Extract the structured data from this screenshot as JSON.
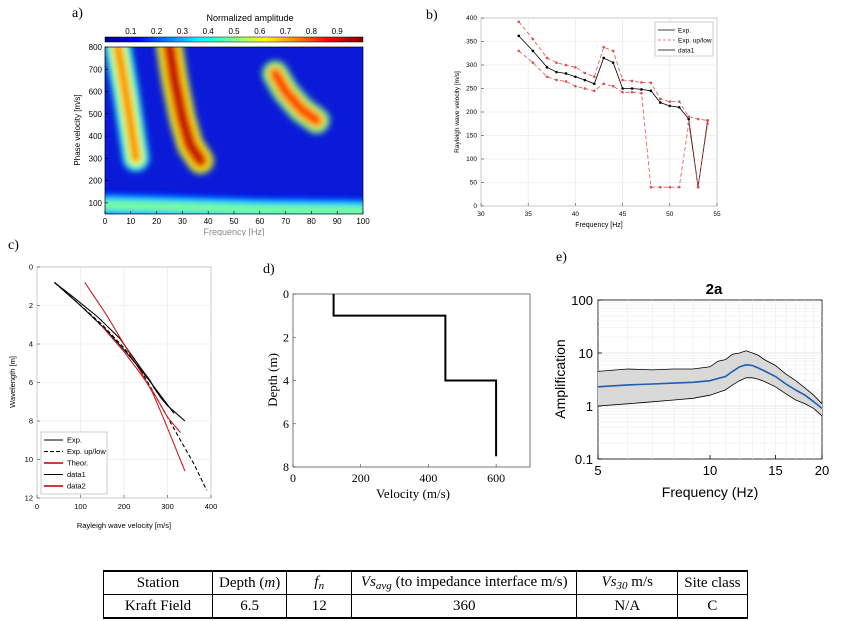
{
  "panel_labels": [
    "a)",
    "b)",
    "c)",
    "d)",
    "e)"
  ],
  "chart_data": [
    {
      "id": "a",
      "type": "heatmap",
      "colorbar_title": "Normalized amplitude",
      "colorbar_ticks": [
        "0.1",
        "0.2",
        "0.3",
        "0.4",
        "0.5",
        "0.6",
        "0.7",
        "0.8",
        "0.9"
      ],
      "colormap": "jet",
      "ylabel": "Phase velocity [m/s]",
      "xlabel": "Frequency [Hz]",
      "xlim": [
        0,
        100
      ],
      "ylim": [
        50,
        800
      ],
      "xticks": [
        0,
        10,
        20,
        30,
        40,
        50,
        60,
        70,
        80,
        90,
        100
      ],
      "yticks": [
        100,
        200,
        300,
        400,
        500,
        600,
        700,
        800
      ],
      "ridges": [
        {
          "x": [
            5,
            8,
            12
          ],
          "y": [
            800,
            600,
            300
          ],
          "amp": 0.75
        },
        {
          "x": [
            25,
            27,
            30,
            33,
            37
          ],
          "y": [
            800,
            650,
            480,
            360,
            290
          ],
          "amp": 0.95
        },
        {
          "x": [
            66,
            70,
            76,
            82
          ],
          "y": [
            680,
            600,
            520,
            470
          ],
          "amp": 0.85
        },
        {
          "x": [
            0,
            30,
            60,
            100
          ],
          "y": [
            90,
            80,
            70,
            65
          ],
          "amp": 0.5
        }
      ]
    },
    {
      "id": "b",
      "type": "line",
      "xlabel": "Frequency [Hz]",
      "ylabel": "Rayleigh wave velocity [m/s]",
      "xlim": [
        30,
        55
      ],
      "ylim": [
        0,
        400
      ],
      "xticks": [
        30,
        35,
        40,
        45,
        50,
        55
      ],
      "yticks": [
        0,
        50,
        100,
        150,
        200,
        250,
        300,
        350,
        400
      ],
      "legend": [
        "Exp.",
        "Exp. up/low",
        "data1"
      ],
      "legend_position": "top-right",
      "series": [
        {
          "name": "Exp.",
          "color": "#000000",
          "dash": "solid",
          "x": [
            34,
            35.5,
            37,
            38,
            39,
            40,
            41,
            42,
            43,
            44,
            45,
            46,
            47,
            48,
            49,
            50,
            51,
            52,
            53,
            54
          ],
          "y": [
            362,
            330,
            295,
            285,
            282,
            275,
            268,
            260,
            315,
            305,
            250,
            250,
            248,
            245,
            220,
            213,
            210,
            185,
            40,
            182
          ]
        },
        {
          "name": "Exp. up/low",
          "color": "#e05050",
          "dash": "dash",
          "x": [
            34,
            35.5,
            37,
            38,
            39,
            40,
            41,
            42,
            43,
            44,
            45,
            46,
            47,
            48,
            49,
            50,
            51,
            52,
            53,
            54
          ],
          "y": [
            392,
            355,
            315,
            305,
            300,
            295,
            283,
            275,
            338,
            330,
            268,
            266,
            263,
            262,
            228,
            222,
            222,
            190,
            185,
            182
          ]
        },
        {
          "name": "",
          "color": "#e05050",
          "dash": "dash",
          "x": [
            34,
            35.5,
            37,
            38,
            39,
            40,
            41,
            42,
            43,
            44,
            45,
            46,
            47,
            48,
            49,
            50,
            51,
            52,
            53,
            54
          ],
          "y": [
            330,
            305,
            275,
            268,
            265,
            255,
            250,
            245,
            260,
            255,
            242,
            242,
            240,
            40,
            40,
            40,
            40,
            175,
            40,
            175
          ]
        }
      ]
    },
    {
      "id": "c",
      "type": "line",
      "xlabel": "Rayleigh wave velocity [m/s]",
      "ylabel": "Wavelength [m]",
      "xlim": [
        0,
        400
      ],
      "ylim": [
        0,
        12
      ],
      "y_reversed": true,
      "xticks": [
        0,
        100,
        200,
        300,
        400
      ],
      "yticks": [
        0,
        2,
        4,
        6,
        8,
        10,
        12
      ],
      "legend": [
        "Exp.",
        "Exp. up/low",
        "Theor.",
        "data1",
        "data2"
      ],
      "legend_position": "bottom-left",
      "series": [
        {
          "name": "Exp.",
          "color": "#000000",
          "dash": "solid",
          "x": [
            40,
            80,
            140,
            190,
            215,
            240,
            260,
            270,
            285,
            300,
            320,
            340
          ],
          "y": [
            0.8,
            1.5,
            2.6,
            3.7,
            4.5,
            5.3,
            5.9,
            6.3,
            6.8,
            7.2,
            7.6,
            8.0
          ]
        },
        {
          "name": "Exp. up/low",
          "color": "#000000",
          "dash": "dash",
          "x": [
            40,
            90,
            150,
            200,
            240,
            270,
            300,
            330,
            360,
            390
          ],
          "y": [
            0.8,
            1.8,
            3.0,
            4.2,
            5.4,
            6.6,
            7.8,
            9.0,
            10.2,
            11.6
          ]
        },
        {
          "name": "Theor.",
          "color": "#cc1f1f",
          "dash": "solid",
          "x": [
            110,
            160,
            205,
            240,
            265,
            290,
            315,
            340
          ],
          "y": [
            0.8,
            2.5,
            4.2,
            5.5,
            6.5,
            7.8,
            9.2,
            10.6
          ]
        },
        {
          "name": "data1",
          "color": "#000000",
          "dash": "solid",
          "x": [
            40,
            100,
            160,
            200,
            230,
            255,
            275,
            295,
            315
          ],
          "y": [
            0.8,
            2.0,
            3.3,
            4.3,
            5.1,
            5.8,
            6.4,
            7.0,
            7.6
          ]
        },
        {
          "name": "data2",
          "color": "#cc1f1f",
          "dash": "solid",
          "x": [
            150,
            200,
            240,
            270,
            300,
            330
          ],
          "y": [
            3.1,
            4.4,
            5.6,
            6.6,
            7.8,
            8.6
          ]
        }
      ]
    },
    {
      "id": "d",
      "type": "line",
      "xlabel": "Velocity (m/s)",
      "ylabel": "Depth (m)",
      "xlim": [
        0,
        700
      ],
      "ylim": [
        0,
        8
      ],
      "y_reversed": true,
      "xticks": [
        0,
        200,
        400,
        600
      ],
      "yticks": [
        0,
        2,
        4,
        6,
        8
      ],
      "series": [
        {
          "name": "",
          "color": "#000000",
          "dash": "solid",
          "x": [
            120,
            120,
            450,
            450,
            600,
            600
          ],
          "y": [
            0,
            1,
            1,
            4,
            4,
            7.5
          ]
        }
      ]
    },
    {
      "id": "e",
      "type": "area",
      "title": "2a",
      "xlabel": "Frequency (Hz)",
      "ylabel": "Amplification",
      "xscale": "log",
      "yscale": "log",
      "xlim": [
        5,
        20
      ],
      "ylim": [
        0.1,
        100
      ],
      "xticks": [
        5,
        10,
        15,
        20
      ],
      "yticks": [
        "0.1",
        "1",
        "10",
        "100"
      ],
      "series": [
        {
          "name": "",
          "role": "mean",
          "color": "#1f5fae",
          "x": [
            5,
            6,
            7,
            8,
            9,
            10,
            10.5,
            11,
            11.5,
            12,
            12.5,
            13,
            13.5,
            14,
            15,
            16,
            17,
            18,
            19,
            20
          ],
          "y": [
            2.3,
            2.5,
            2.6,
            2.7,
            2.8,
            3.0,
            3.3,
            3.6,
            4.5,
            5.5,
            6.0,
            5.8,
            5.2,
            4.6,
            3.6,
            2.6,
            2.0,
            1.6,
            1.2,
            0.9
          ]
        },
        {
          "name": "",
          "role": "upper",
          "color": "#000000",
          "x": [
            5,
            6,
            7,
            8,
            9,
            10,
            10.5,
            11,
            11.5,
            12,
            12.5,
            13,
            13.5,
            14,
            15,
            16,
            17,
            18,
            19,
            20
          ],
          "y": [
            4.5,
            5.0,
            4.8,
            5.0,
            5.0,
            5.5,
            7.0,
            7.5,
            9.5,
            10.0,
            11.0,
            10.0,
            9.0,
            7.5,
            5.8,
            4.0,
            3.0,
            2.2,
            1.6,
            1.1
          ]
        },
        {
          "name": "",
          "role": "lower",
          "color": "#000000",
          "x": [
            5,
            6,
            7,
            8,
            9,
            10,
            10.5,
            11,
            11.5,
            12,
            12.5,
            13,
            13.5,
            14,
            15,
            16,
            17,
            18,
            19,
            20
          ],
          "y": [
            1.0,
            1.1,
            1.2,
            1.3,
            1.4,
            1.6,
            1.8,
            2.0,
            2.5,
            3.0,
            3.4,
            3.4,
            3.2,
            2.9,
            2.3,
            1.7,
            1.3,
            1.1,
            0.9,
            0.65
          ]
        }
      ]
    }
  ],
  "table": {
    "header": {
      "station": "Station",
      "depth": "Depth (",
      "depth_unit": "m",
      "depth_close": ")",
      "fn_main": "f",
      "fn_sub": "n",
      "vsavg_main": "Vs",
      "vsavg_sub": "avg",
      "vsavg_tail": " (to impedance interface m/s)",
      "vs30_main": "Vs",
      "vs30_sub": "30",
      "vs30_tail": "  m/s",
      "site_class": "Site class"
    },
    "row": {
      "station": "Kraft Field",
      "depth": "6.5",
      "fn": "12",
      "vsavg": "360",
      "vs30": "N/A",
      "site_class": "C"
    }
  }
}
